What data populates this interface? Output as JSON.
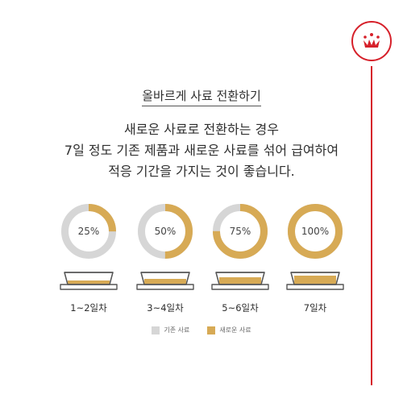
{
  "colors": {
    "brand": "#d6202a",
    "old_food": "#d6d6d6",
    "new_food": "#d7aa55"
  },
  "brand_logo": {
    "icon": "crown-icon"
  },
  "title": "올바르게 사료 전환하기",
  "subtitle": [
    "새로운 사료로 전환하는 경우",
    "7일 정도 기존 제품과 새로운 사료를 섞어 급여하여",
    "적응 기간을 가지는 것이 좋습니다."
  ],
  "stages": [
    {
      "percent_label": "25%",
      "new_fraction": 0.25,
      "days": "1~2일차"
    },
    {
      "percent_label": "50%",
      "new_fraction": 0.5,
      "days": "3~4일차"
    },
    {
      "percent_label": "75%",
      "new_fraction": 0.75,
      "days": "5~6일차"
    },
    {
      "percent_label": "100%",
      "new_fraction": 1.0,
      "days": "7일차"
    }
  ],
  "legend": {
    "old_label": "기존 사료",
    "new_label": "새로운 사료"
  }
}
